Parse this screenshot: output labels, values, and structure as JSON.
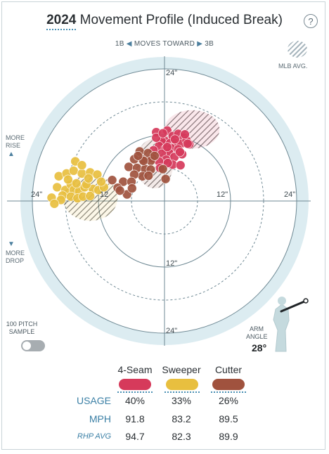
{
  "header": {
    "year": "2024",
    "title": "Movement Profile (Induced Break)",
    "help_label": "?"
  },
  "direction": {
    "left": "1B",
    "middle": "MOVES TOWARD",
    "right": "3B"
  },
  "mlb_avg": {
    "label": "MLB AVG."
  },
  "rise": {
    "line1": "MORE",
    "line2": "RISE",
    "arrow": "▲"
  },
  "drop": {
    "arrow": "▼",
    "line1": "MORE",
    "line2": "DROP"
  },
  "rings": {
    "top": "24\"",
    "left": "24\"",
    "left_inner": "12",
    "right_inner": "12\"",
    "right": "24\"",
    "bottom_inner": "12\"",
    "bottom": "24\""
  },
  "sample": {
    "line1": "100 PITCH",
    "line2": "SAMPLE"
  },
  "arm": {
    "line1": "ARM",
    "line2": "ANGLE",
    "value": "28°"
  },
  "pitches": [
    {
      "name": "4-Seam",
      "color": "#d63a5b",
      "usage": "40%",
      "mph": "91.8",
      "rhp_avg": "94.7"
    },
    {
      "name": "Sweeper",
      "color": "#e8bf3f",
      "usage": "33%",
      "mph": "83.2",
      "rhp_avg": "82.3"
    },
    {
      "name": "Cutter",
      "color": "#a0523e",
      "usage": "26%",
      "mph": "89.5",
      "rhp_avg": "89.9"
    }
  ],
  "rows": {
    "usage": "USAGE",
    "mph": "MPH",
    "rhp": "RHP AVG"
  },
  "chart_data": {
    "type": "scatter",
    "x_axis": "horizontal break (in)",
    "y_axis": "induced vertical break (in)",
    "xlim": [
      -24,
      24
    ],
    "ylim": [
      -24,
      24
    ],
    "series": [
      {
        "name": "4-Seam",
        "color": "#d63a5b",
        "points": [
          [
            -1.5,
            12.5
          ],
          [
            0.5,
            12.8
          ],
          [
            1.5,
            11.8
          ],
          [
            2.5,
            12.2
          ],
          [
            3.5,
            11.5
          ],
          [
            0,
            11
          ],
          [
            -0.5,
            10.8
          ],
          [
            1,
            10.5
          ],
          [
            2,
            10.5
          ],
          [
            3,
            10.4
          ],
          [
            -1,
            10
          ],
          [
            0.2,
            9.5
          ],
          [
            1.2,
            9.6
          ],
          [
            2.5,
            9.4
          ],
          [
            4,
            11
          ],
          [
            4.5,
            10.3
          ],
          [
            -1.5,
            11.5
          ],
          [
            0.8,
            8.8
          ],
          [
            -0.5,
            8.6
          ],
          [
            1.8,
            8
          ],
          [
            -2,
            9.2
          ],
          [
            0.3,
            7.5
          ],
          [
            3.2,
            8.5
          ],
          [
            -1,
            7.2
          ],
          [
            1.5,
            6.6
          ],
          [
            -0.8,
            6
          ],
          [
            2.9,
            6.5
          ],
          [
            4.2,
            10.4
          ],
          [
            0.5,
            9.8
          ],
          [
            -0.3,
            12.3
          ],
          [
            1.9,
            11.2
          ],
          [
            3.7,
            12.1
          ],
          [
            -2.2,
            7.8
          ],
          [
            2.8,
            8.9
          ],
          [
            0.6,
            6.9
          ]
        ]
      },
      {
        "name": "Sweeper",
        "color": "#e8bf3f",
        "points": [
          [
            -19.5,
            2.5
          ],
          [
            -18,
            2
          ],
          [
            -17,
            3
          ],
          [
            -16.5,
            2
          ],
          [
            -15.5,
            1.8
          ],
          [
            -14.5,
            2.5
          ],
          [
            -13,
            2.2
          ],
          [
            -12,
            2
          ],
          [
            -11,
            2.5
          ],
          [
            -19.2,
            4.5
          ],
          [
            -17.8,
            5
          ],
          [
            -16.5,
            5.5
          ],
          [
            -15,
            5
          ],
          [
            -13.5,
            5.2
          ],
          [
            -18.5,
            1
          ],
          [
            -17,
            0.8
          ],
          [
            -15.8,
            0.5
          ],
          [
            -14.8,
            0.8
          ],
          [
            -13.5,
            0.9
          ],
          [
            -20.5,
            0.6
          ],
          [
            -16.2,
            7.2
          ],
          [
            -15,
            6.5
          ],
          [
            -12.2,
            4.8
          ],
          [
            -18.8,
            0.2
          ],
          [
            -14.2,
            3
          ],
          [
            -11.5,
            3.5
          ],
          [
            -17.5,
            3.9
          ],
          [
            -16,
            3.2
          ],
          [
            -20,
            -0.5
          ],
          [
            -13.8,
            4.1
          ]
        ]
      },
      {
        "name": "Cutter",
        "color": "#a0523e",
        "points": [
          [
            -4.5,
            9
          ],
          [
            -3,
            8.7
          ],
          [
            -5.5,
            7.6
          ],
          [
            -4,
            7.5
          ],
          [
            -2.5,
            7.3
          ],
          [
            -1.8,
            8.2
          ],
          [
            -6.5,
            6.2
          ],
          [
            -5,
            6
          ],
          [
            -3.5,
            5.8
          ],
          [
            -2.5,
            5.7
          ],
          [
            -4,
            4.5
          ],
          [
            -5.5,
            4.8
          ],
          [
            -7.5,
            3.5
          ],
          [
            -6,
            3.5
          ],
          [
            -0.3,
            5.8
          ],
          [
            0.2,
            4
          ],
          [
            -9.5,
            3.8
          ],
          [
            -8.5,
            2.4
          ],
          [
            -6.8,
            1.2
          ],
          [
            -8.1,
            1.9
          ],
          [
            -3.8,
            7.3
          ],
          [
            -5.9,
            2.3
          ],
          [
            -2.9,
            4.6
          ],
          [
            -4.8,
            8.2
          ]
        ]
      }
    ],
    "mlb_avg": [
      {
        "pitch": "4-Seam",
        "x": 5,
        "y": 13,
        "rx": 5,
        "ry": 3.5
      },
      {
        "pitch": "Cutter",
        "x": -1.8,
        "y": 6.8,
        "rx": 3.4,
        "ry": 4.5
      },
      {
        "pitch": "Sweeper",
        "x": -13.5,
        "y": 0.6,
        "rx": 5,
        "ry": 4.2
      }
    ]
  }
}
